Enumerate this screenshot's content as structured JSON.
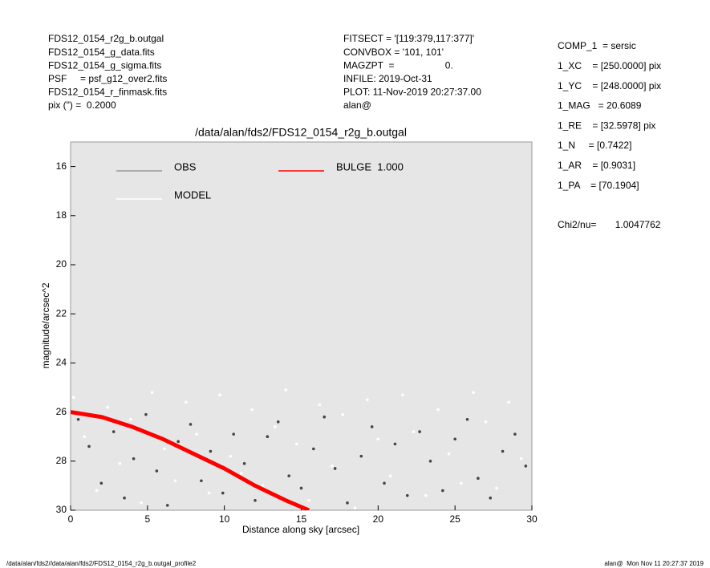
{
  "header": {
    "left": [
      "FDS12_0154_r2g_b.outgal",
      "FDS12_0154_g_data.fits",
      "FDS12_0154_g_sigma.fits",
      "PSF     = psf_g12_over2.fits",
      "FDS12_0154_r_finmask.fits",
      "pix (\") =  0.2000"
    ],
    "center": [
      "FITSECT = '[119:379,117:377]'",
      "CONVBOX = '101, 101'",
      "MAGZPT  =                   0.",
      "INFILE: 2019-Oct-31",
      "PLOT: 11-Nov-2019 20:27:37.00",
      "alan@"
    ],
    "right": [
      "COMP_1  = sersic",
      "1_XC    = [250.0000] pix",
      "1_YC    = [248.0000] pix",
      "1_MAG   = 20.6089",
      "1_RE    = [32.5978] pix",
      "1_N     = [0.7422]",
      "1_AR    = [0.9031]",
      "1_PA    = [70.1904]",
      "Chi2/nu=       1.0047762"
    ]
  },
  "footer": {
    "left": "/data/alan/fds2//data/alan/fds2/FDS12_0154_r2g_b.outgal_profile2",
    "right": "alan@  Mon Nov 11 20:27:37 2019"
  },
  "chart_data": {
    "type": "scatter",
    "title": "/data/alan/fds2/FDS12_0154_r2g_b.outgal",
    "x_label": "Distance along sky [arcsec]",
    "y_label": "magnitude/arcsec^2",
    "xlim": [
      0,
      30
    ],
    "xticks": [
      0,
      5,
      10,
      15,
      20,
      25,
      30
    ],
    "ylim": [
      15,
      30
    ],
    "y_inverted": true,
    "yticks": [
      16,
      18,
      20,
      22,
      24,
      26,
      28,
      30
    ],
    "series": [
      {
        "name": "OBS",
        "color": "#444444",
        "legend_color": "#999999",
        "kind": "points",
        "x": [
          0.5,
          1.2,
          2.0,
          2.8,
          3.5,
          4.1,
          4.9,
          5.6,
          6.3,
          7.0,
          7.8,
          8.5,
          9.1,
          9.9,
          10.6,
          11.3,
          12.0,
          12.8,
          13.5,
          14.2,
          15.0,
          15.8,
          16.5,
          17.2,
          18.0,
          18.9,
          19.6,
          20.4,
          21.1,
          21.9,
          22.7,
          23.4,
          24.2,
          25.0,
          25.8,
          26.5,
          27.3,
          28.1,
          28.9,
          29.6
        ],
        "y": [
          26.3,
          27.4,
          28.9,
          26.8,
          29.5,
          27.9,
          26.1,
          28.4,
          29.8,
          27.2,
          26.5,
          28.8,
          27.6,
          29.3,
          26.9,
          28.1,
          29.6,
          27.0,
          26.4,
          28.6,
          29.1,
          27.5,
          26.2,
          28.3,
          29.7,
          27.8,
          26.6,
          28.9,
          27.3,
          29.4,
          26.8,
          28.0,
          29.2,
          27.1,
          26.3,
          28.7,
          29.5,
          27.6,
          26.9,
          28.2
        ]
      },
      {
        "name": "MODEL",
        "color": "#ffffff",
        "legend_color": "#ffffff",
        "kind": "points",
        "x": [
          0.2,
          0.9,
          1.7,
          2.4,
          3.2,
          3.9,
          4.6,
          5.3,
          6.1,
          6.8,
          7.5,
          8.2,
          9.0,
          9.7,
          10.4,
          11.1,
          11.8,
          12.5,
          13.3,
          14.0,
          14.7,
          15.5,
          16.2,
          17.0,
          17.7,
          18.5,
          19.3,
          20.0,
          20.8,
          21.6,
          22.3,
          23.1,
          23.9,
          24.6,
          25.4,
          26.2,
          27.0,
          27.7,
          28.5,
          29.3
        ],
        "y": [
          25.4,
          27.0,
          29.2,
          25.8,
          28.1,
          26.3,
          29.7,
          25.2,
          27.5,
          28.8,
          25.6,
          26.9,
          29.3,
          25.3,
          27.8,
          28.5,
          25.9,
          29.0,
          26.6,
          25.1,
          27.3,
          29.6,
          25.7,
          28.2,
          26.1,
          29.9,
          25.5,
          27.1,
          28.6,
          25.3,
          26.8,
          29.4,
          25.9,
          27.7,
          28.9,
          25.2,
          26.4,
          29.1,
          25.6,
          27.9
        ]
      },
      {
        "name": "BULGE  1.000",
        "color": "#ff0000",
        "legend_color": "#ff0000",
        "kind": "line",
        "x": [
          0,
          2,
          4,
          6,
          8,
          10,
          12,
          14,
          15.5
        ],
        "y": [
          26.0,
          26.2,
          26.6,
          27.1,
          27.7,
          28.3,
          29.0,
          29.6,
          30.0
        ]
      }
    ]
  }
}
